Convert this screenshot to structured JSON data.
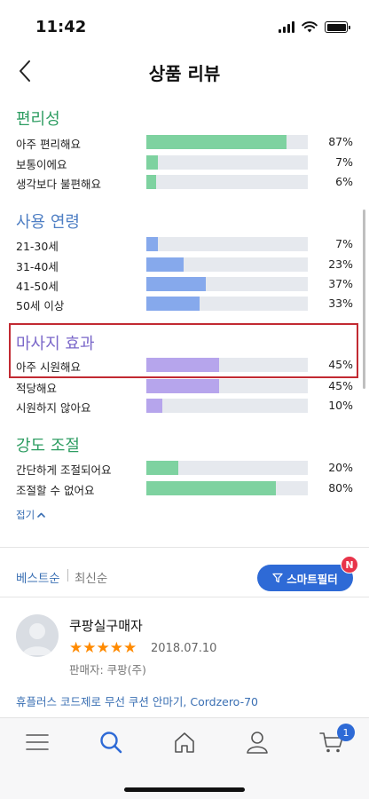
{
  "status_bar": {
    "time": "11:42"
  },
  "header": {
    "title": "상품 리뷰"
  },
  "sections": [
    {
      "title": "편리성",
      "color": "#2e9d62",
      "bar_color": "#7ed2a0",
      "rows": [
        {
          "label": "아주 편리해요",
          "percent": "87%",
          "value": 87
        },
        {
          "label": "보통이에요",
          "percent": "7%",
          "value": 7
        },
        {
          "label": "생각보다 불편해요",
          "percent": "6%",
          "value": 6
        }
      ]
    },
    {
      "title": "사용 연령",
      "color": "#4f7fc4",
      "bar_color": "#86a9ec",
      "rows": [
        {
          "label": "21-30세",
          "percent": "7%",
          "value": 7
        },
        {
          "label": "31-40세",
          "percent": "23%",
          "value": 23
        },
        {
          "label": "41-50세",
          "percent": "37%",
          "value": 37
        },
        {
          "label": "50세 이상",
          "percent": "33%",
          "value": 33
        }
      ]
    },
    {
      "title": "마사지 효과",
      "color": "#7a67c9",
      "bar_color": "#b6a5ec",
      "rows": [
        {
          "label": "아주 시원해요",
          "percent": "45%",
          "value": 45
        },
        {
          "label": "적당해요",
          "percent": "45%",
          "value": 45
        },
        {
          "label": "시원하지 않아요",
          "percent": "10%",
          "value": 10
        }
      ]
    },
    {
      "title": "강도 조절",
      "color": "#2e9d62",
      "bar_color": "#7ed2a0",
      "rows": [
        {
          "label": "간단하게 조절되어요",
          "percent": "20%",
          "value": 20
        },
        {
          "label": "조절할 수 없어요",
          "percent": "80%",
          "value": 80
        }
      ]
    }
  ],
  "collapse": {
    "label": "접기"
  },
  "sort": {
    "best": "베스트순",
    "newest": "최신순"
  },
  "filter": {
    "label": "스마트필터",
    "badge": "N"
  },
  "review": {
    "name": "쿠팡실구매자",
    "date": "2018.07.10",
    "rating": 5,
    "stars": "★★★★★",
    "seller": "판매자: 쿠팡(주)",
    "product": "휴플러스 코드제로 무선 쿠션 안마기, Cordzero-70"
  },
  "tab_bar": {
    "icons": [
      "menu-icon",
      "search-icon",
      "home-icon",
      "user-icon",
      "cart-icon"
    ],
    "cart_count": "1"
  },
  "colors": {
    "accent": "#2e6ad6",
    "highlight_border": "#c22a32"
  }
}
